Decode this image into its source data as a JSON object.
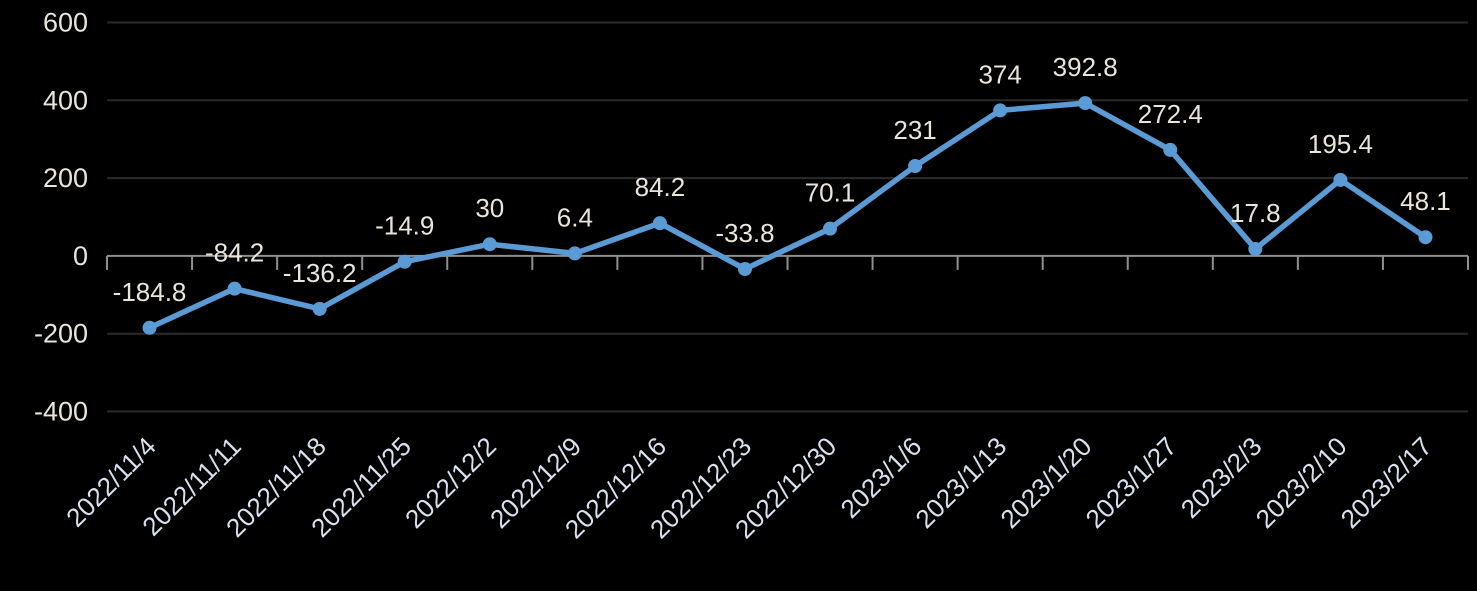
{
  "window": {
    "background": "#000000"
  },
  "chart_data": {
    "type": "line",
    "title": "",
    "xlabel": "",
    "ylabel": "",
    "categories": [
      "2022/11/4",
      "2022/11/11",
      "2022/11/18",
      "2022/11/25",
      "2022/12/2",
      "2022/12/9",
      "2022/12/16",
      "2022/12/23",
      "2022/12/30",
      "2023/1/6",
      "2023/1/13",
      "2023/1/20",
      "2023/1/27",
      "2023/2/3",
      "2023/2/10",
      "2023/2/17"
    ],
    "series": [
      {
        "name": "Series 1",
        "color": "#5B9BD5",
        "values": [
          -184.8,
          -84.2,
          -136.2,
          -14.9,
          30,
          6.4,
          84.2,
          -33.8,
          70.1,
          231,
          374,
          392.8,
          272.4,
          17.8,
          195.4,
          48.1
        ],
        "labels": [
          "-184.8",
          "-84.2",
          "-136.2",
          "-14.9",
          "30",
          "6.4",
          "84.2",
          "-33.8",
          "70.1",
          "231",
          "374",
          "392.8",
          "272.4",
          "17.8",
          "195.4",
          "48.1"
        ]
      }
    ],
    "ylim": [
      -400,
      600
    ],
    "yticks": [
      600,
      400,
      200,
      0,
      -200,
      -400
    ],
    "ytick_labels": [
      "600",
      "400",
      "200",
      "0",
      "-200",
      "-400"
    ],
    "grid": true,
    "legend_position": "none",
    "x_label_rotation_deg": 45,
    "marker": "circle",
    "colors": {
      "background": "#000000",
      "series": "#5B9BD5",
      "gridline": "#2b2b2b",
      "axis_line": "#8f8f8f",
      "tick_mark": "#8f8f8f",
      "y_tick_label": "#EAE4DB",
      "x_tick_label": "#D8E1F0",
      "data_label": "#EAE4DB"
    }
  }
}
